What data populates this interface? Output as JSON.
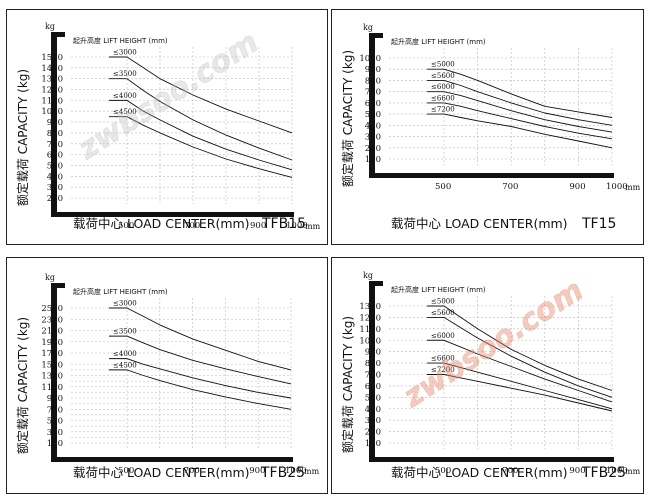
{
  "chart_data": [
    {
      "type": "line",
      "title": "",
      "unit": "kg",
      "header": "起升高度 LIFT HEIGHT (mm)",
      "ylabel": "额定载荷 CAPACITY (kg)",
      "xlabel": "载荷中心 LOAD CENTER(mm)",
      "model": "TFB15",
      "x_unit": "mm",
      "ylim": [
        200,
        1500
      ],
      "xlim": [
        400,
        1000
      ],
      "yticks": [
        1500,
        1400,
        1300,
        1200,
        1100,
        1000,
        900,
        800,
        700,
        600,
        500,
        400,
        300,
        200
      ],
      "xticks": [
        500,
        700,
        900,
        1000
      ],
      "grid": true,
      "x": [
        500,
        550,
        600,
        700,
        800,
        900,
        1000
      ],
      "series": [
        {
          "name": "≤3000",
          "values": [
            1500,
            1400,
            1300,
            1150,
            1020,
            910,
            800
          ]
        },
        {
          "name": "≤3500",
          "values": [
            1300,
            1190,
            1090,
            920,
            780,
            660,
            550
          ]
        },
        {
          "name": "≤4000",
          "values": [
            1100,
            1000,
            920,
            770,
            650,
            550,
            460
          ]
        },
        {
          "name": "≤4500",
          "values": [
            950,
            870,
            800,
            670,
            560,
            470,
            390
          ]
        }
      ],
      "watermark": "zwbsoo.com"
    },
    {
      "type": "line",
      "title": "",
      "unit": "kg",
      "header": "起升高度 LIFT HEIGHT (mm)",
      "ylabel": "额定载荷 CAPACITY (kg)",
      "xlabel": "载荷中心 LOAD CENTER(mm)",
      "model": "TF15",
      "x_unit": "mm",
      "ylim": [
        100,
        1000
      ],
      "xlim": [
        400,
        1000
      ],
      "yticks": [
        1000,
        900,
        800,
        700,
        600,
        500,
        400,
        300,
        200,
        100
      ],
      "xticks": [
        500,
        700,
        900,
        1000
      ],
      "grid": true,
      "x": [
        500,
        550,
        600,
        700,
        800,
        900,
        1000
      ],
      "series": [
        {
          "name": "≤5000",
          "values": [
            900,
            855,
            800,
            680,
            570,
            520,
            470
          ]
        },
        {
          "name": "≤5600",
          "values": [
            800,
            755,
            700,
            600,
            510,
            450,
            400
          ]
        },
        {
          "name": "≤6000",
          "values": [
            700,
            665,
            620,
            530,
            450,
            390,
            340
          ]
        },
        {
          "name": "≤6600",
          "values": [
            600,
            570,
            530,
            460,
            390,
            330,
            280
          ]
        },
        {
          "name": "≤7200",
          "values": [
            500,
            470,
            440,
            390,
            320,
            260,
            200
          ]
        }
      ],
      "watermark": ""
    },
    {
      "type": "line",
      "title": "",
      "unit": "kg",
      "header": "起升高度 LIFT HEIGHT (mm)",
      "ylabel": "额定载荷 CAPACITY (kg)",
      "xlabel": "载荷中心 LOAD CENTER(mm)",
      "model": "TFB25",
      "x_unit": "mm",
      "ylim": [
        100,
        2500
      ],
      "xlim": [
        400,
        1000
      ],
      "yticks": [
        2500,
        2300,
        2100,
        1900,
        1700,
        1500,
        1300,
        1100,
        900,
        700,
        500,
        300,
        100
      ],
      "yticks_minor": [
        1400,
        1200,
        1000,
        800,
        600,
        400,
        200
      ],
      "xticks": [
        500,
        700,
        900,
        1000
      ],
      "grid": true,
      "x": [
        500,
        550,
        600,
        700,
        800,
        900,
        1000
      ],
      "series": [
        {
          "name": "≤3000",
          "values": [
            2500,
            2350,
            2200,
            1950,
            1750,
            1550,
            1400
          ]
        },
        {
          "name": "≤3500",
          "values": [
            2000,
            1880,
            1760,
            1570,
            1420,
            1280,
            1150
          ]
        },
        {
          "name": "≤4000",
          "values": [
            1600,
            1500,
            1420,
            1260,
            1120,
            1000,
            900
          ]
        },
        {
          "name": "≤4500",
          "values": [
            1400,
            1300,
            1210,
            1050,
            920,
            800,
            700
          ]
        }
      ],
      "watermark": ""
    },
    {
      "type": "line",
      "title": "",
      "unit": "kg",
      "header": "起升高度 LIFT HEIGHT (mm)",
      "ylabel": "额定载荷 CAPACITY (kg)",
      "xlabel": "载荷中心 LOAD CENTER(mm)",
      "model": "TFB25",
      "x_unit": "mm",
      "ylim": [
        100,
        1300
      ],
      "xlim": [
        400,
        1000
      ],
      "yticks": [
        1300,
        1200,
        1100,
        1000,
        900,
        800,
        700,
        600,
        500,
        400,
        300,
        200,
        100
      ],
      "xticks": [
        500,
        700,
        900,
        1000
      ],
      "grid": true,
      "x": [
        500,
        550,
        600,
        700,
        800,
        900,
        1000
      ],
      "series": [
        {
          "name": "≤5000",
          "values": [
            1300,
            1200,
            1100,
            920,
            780,
            660,
            560
          ]
        },
        {
          "name": "≤5600",
          "values": [
            1200,
            1110,
            1020,
            860,
            720,
            600,
            500
          ]
        },
        {
          "name": "≤6000",
          "values": [
            1000,
            940,
            880,
            770,
            660,
            560,
            460
          ]
        },
        {
          "name": "≤6600",
          "values": [
            800,
            760,
            720,
            640,
            560,
            480,
            400
          ]
        },
        {
          "name": "≤7200",
          "values": [
            700,
            670,
            640,
            580,
            520,
            450,
            380
          ]
        }
      ],
      "watermark": "zwbsoo.com"
    }
  ]
}
